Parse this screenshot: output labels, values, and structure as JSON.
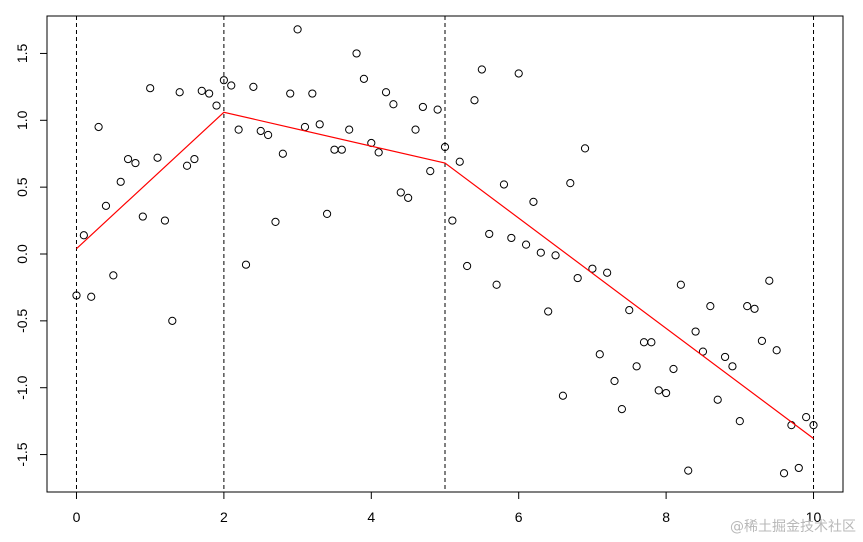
{
  "chart_data": {
    "type": "scatter",
    "title": "",
    "xlabel": "",
    "ylabel": "",
    "xlim": [
      -0.4,
      10.4
    ],
    "ylim": [
      -1.78,
      1.78
    ],
    "x_ticks": [
      0,
      2,
      4,
      6,
      8,
      10
    ],
    "y_ticks": [
      -1.5,
      -1.0,
      -0.5,
      0.0,
      0.5,
      1.0,
      1.5
    ],
    "x_tick_labels": [
      "0",
      "2",
      "4",
      "6",
      "8",
      "10"
    ],
    "y_tick_labels": [
      "-1.5",
      "-1.0",
      "-0.5",
      "0.0",
      "0.5",
      "1.0",
      "1.5"
    ],
    "grid": false,
    "knots": [
      0,
      2,
      5,
      10
    ],
    "points": {
      "x": [
        0.0,
        0.1,
        0.2,
        0.3,
        0.4,
        0.5,
        0.6,
        0.7,
        0.8,
        0.9,
        1.0,
        1.1,
        1.2,
        1.3,
        1.4,
        1.5,
        1.6,
        1.7,
        1.8,
        1.9,
        2.0,
        2.1,
        2.2,
        2.3,
        2.4,
        2.5,
        2.6,
        2.7,
        2.8,
        2.9,
        3.0,
        3.1,
        3.2,
        3.3,
        3.4,
        3.5,
        3.6,
        3.7,
        3.8,
        3.9,
        4.0,
        4.1,
        4.2,
        4.3,
        4.4,
        4.5,
        4.6,
        4.7,
        4.8,
        4.9,
        5.0,
        5.1,
        5.2,
        5.3,
        5.4,
        5.5,
        5.6,
        5.7,
        5.8,
        5.9,
        6.0,
        6.1,
        6.2,
        6.3,
        6.4,
        6.5,
        6.6,
        6.7,
        6.8,
        6.9,
        7.0,
        7.1,
        7.2,
        7.3,
        7.4,
        7.5,
        7.6,
        7.7,
        7.8,
        7.9,
        8.0,
        8.1,
        8.2,
        8.3,
        8.4,
        8.5,
        8.6,
        8.7,
        8.8,
        8.9,
        9.0,
        9.1,
        9.2,
        9.3,
        9.4,
        9.5,
        9.6,
        9.7,
        9.8,
        9.9,
        10.0
      ],
      "y": [
        -0.31,
        0.14,
        -0.32,
        0.95,
        0.36,
        -0.16,
        0.54,
        0.71,
        0.68,
        0.28,
        1.24,
        0.72,
        0.25,
        -0.5,
        1.21,
        0.66,
        0.71,
        1.22,
        1.2,
        1.11,
        1.3,
        1.26,
        0.93,
        -0.08,
        1.25,
        0.92,
        0.89,
        0.24,
        0.75,
        1.2,
        1.68,
        0.95,
        1.2,
        0.97,
        0.3,
        0.78,
        0.78,
        0.93,
        1.5,
        1.31,
        0.83,
        0.76,
        1.21,
        1.12,
        0.46,
        0.42,
        0.93,
        1.1,
        0.62,
        1.08,
        0.8,
        0.25,
        0.69,
        -0.09,
        1.15,
        1.38,
        0.15,
        -0.23,
        0.52,
        0.12,
        1.35,
        0.07,
        0.39,
        0.01,
        -0.43,
        -0.01,
        -1.06,
        0.53,
        -0.18,
        0.79,
        -0.11,
        -0.75,
        -0.14,
        -0.95,
        -1.16,
        -0.42,
        -0.84,
        -0.66,
        -0.66,
        -1.02,
        -1.04,
        -0.86,
        -0.23,
        -1.62,
        -0.58,
        -0.73,
        -0.39,
        -1.09,
        -0.77,
        -0.84,
        -1.25,
        -0.39,
        -0.41,
        -0.65,
        -0.2,
        -0.72,
        -1.64,
        -1.28,
        -1.6,
        -1.22,
        -1.28
      ]
    },
    "fit_line": {
      "x": [
        0,
        2,
        5,
        10
      ],
      "y": [
        0.04,
        1.06,
        0.68,
        -1.38
      ],
      "color": "#ff0000"
    },
    "point_color": "#000000",
    "knot_line_color": "#000000"
  },
  "watermark": "@稀土掘金技术社区"
}
